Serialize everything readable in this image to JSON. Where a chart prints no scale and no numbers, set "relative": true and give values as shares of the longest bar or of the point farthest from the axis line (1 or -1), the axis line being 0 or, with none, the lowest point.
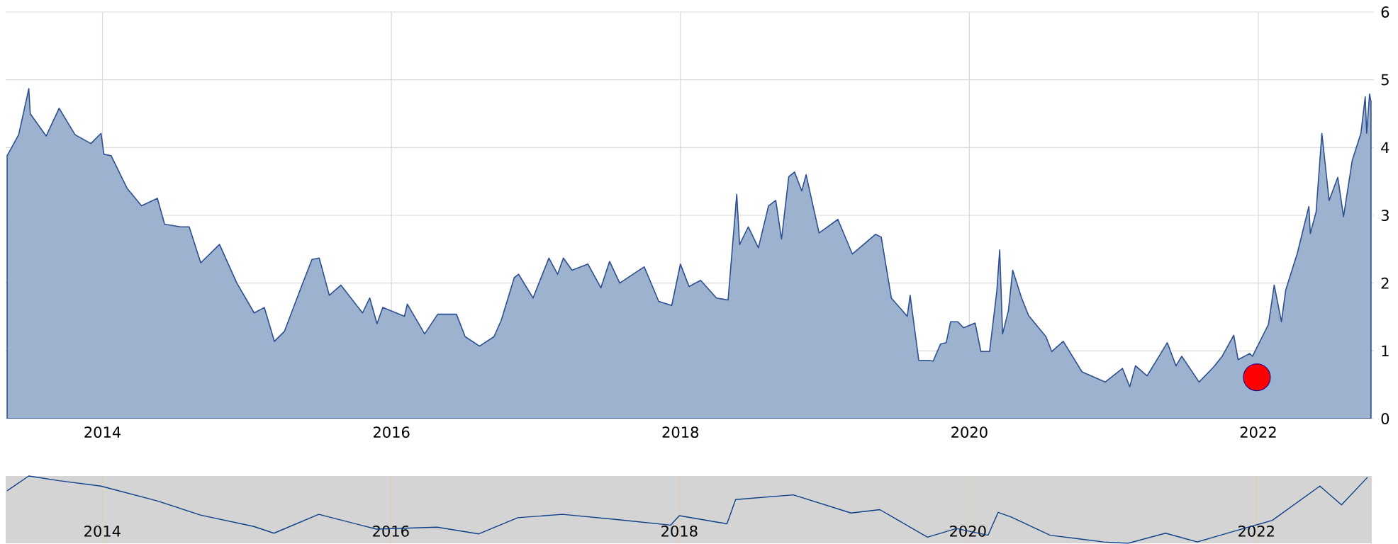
{
  "chart_data": [
    {
      "type": "area",
      "xlim": [
        2013.33,
        2022.8
      ],
      "ylim": [
        0,
        6
      ],
      "xticks": [
        2014,
        2016,
        2018,
        2020,
        2022
      ],
      "yticks": [
        0,
        1,
        2,
        3,
        4,
        5,
        6
      ],
      "grid": true,
      "series": [
        {
          "color": "#9db2cf",
          "x": [
            2013.34,
            2013.42,
            2013.49,
            2013.5,
            2013.61,
            2013.7,
            2013.81,
            2013.92,
            2013.99,
            2014.01,
            2014.06,
            2014.17,
            2014.27,
            2014.38,
            2014.43,
            2014.54,
            2014.6,
            2014.68,
            2014.81,
            2014.93,
            2015.05,
            2015.12,
            2015.19,
            2015.26,
            2015.37,
            2015.45,
            2015.5,
            2015.57,
            2015.65,
            2015.8,
            2015.85,
            2015.9,
            2015.94,
            2016.09,
            2016.11,
            2016.23,
            2016.32,
            2016.45,
            2016.51,
            2016.61,
            2016.71,
            2016.76,
            2016.85,
            2016.88,
            2016.98,
            2017.09,
            2017.15,
            2017.19,
            2017.25,
            2017.36,
            2017.45,
            2017.51,
            2017.58,
            2017.75,
            2017.85,
            2017.94,
            2018.0,
            2018.06,
            2018.14,
            2018.25,
            2018.33,
            2018.39,
            2018.41,
            2018.47,
            2018.54,
            2018.61,
            2018.66,
            2018.7,
            2018.75,
            2018.79,
            2018.84,
            2018.87,
            2018.96,
            2019.09,
            2019.19,
            2019.35,
            2019.39,
            2019.46,
            2019.57,
            2019.59,
            2019.65,
            2019.72,
            2019.75,
            2019.8,
            2019.84,
            2019.87,
            2019.92,
            2019.96,
            2020.04,
            2020.08,
            2020.14,
            2020.19,
            2020.21,
            2020.23,
            2020.27,
            2020.3,
            2020.33,
            2020.36,
            2020.41,
            2020.53,
            2020.57,
            2020.65,
            2020.78,
            2020.94,
            2021.06,
            2021.11,
            2021.15,
            2021.23,
            2021.37,
            2021.43,
            2021.47,
            2021.59,
            2021.69,
            2021.75,
            2021.83,
            2021.86,
            2021.94,
            2021.96,
            2022.07,
            2022.11,
            2022.16,
            2022.19,
            2022.27,
            2022.35,
            2022.36,
            2022.4,
            2022.44,
            2022.49,
            2022.55,
            2022.59,
            2022.65,
            2022.71,
            2022.74,
            2022.75,
            2022.77,
            2022.78
          ],
          "values": [
            3.88,
            4.19,
            4.87,
            4.5,
            4.17,
            4.58,
            4.19,
            4.06,
            4.21,
            3.9,
            3.88,
            3.4,
            3.14,
            3.25,
            2.87,
            2.83,
            2.83,
            2.3,
            2.57,
            2.0,
            1.56,
            1.64,
            1.14,
            1.29,
            1.91,
            2.35,
            2.37,
            1.82,
            1.97,
            1.56,
            1.78,
            1.4,
            1.64,
            1.51,
            1.69,
            1.25,
            1.54,
            1.54,
            1.21,
            1.07,
            1.21,
            1.45,
            2.08,
            2.13,
            1.78,
            2.37,
            2.13,
            2.37,
            2.19,
            2.28,
            1.93,
            2.32,
            2.0,
            2.24,
            1.73,
            1.67,
            2.28,
            1.95,
            2.04,
            1.78,
            1.75,
            3.31,
            2.57,
            2.83,
            2.52,
            3.14,
            3.22,
            2.65,
            3.57,
            3.64,
            3.36,
            3.6,
            2.74,
            2.94,
            2.43,
            2.72,
            2.68,
            1.78,
            1.51,
            1.82,
            0.86,
            0.86,
            0.85,
            1.1,
            1.12,
            1.43,
            1.43,
            1.34,
            1.41,
            0.99,
            0.99,
            1.88,
            2.49,
            1.25,
            1.59,
            2.19,
            1.99,
            1.79,
            1.52,
            1.21,
            0.99,
            1.14,
            0.69,
            0.54,
            0.74,
            0.47,
            0.78,
            0.63,
            1.12,
            0.78,
            0.92,
            0.54,
            0.76,
            0.92,
            1.23,
            0.87,
            0.96,
            0.92,
            1.39,
            1.97,
            1.43,
            1.9,
            2.44,
            3.13,
            2.73,
            3.05,
            4.21,
            3.22,
            3.56,
            2.98,
            3.81,
            4.21,
            4.75,
            4.21,
            4.79,
            4.68
          ]
        },
        {
          "type": "scatter",
          "color": "#ff0000",
          "marker": "circle",
          "x": [
            2021.99
          ],
          "values": [
            0.61
          ]
        }
      ]
    },
    {
      "type": "line",
      "relative": true,
      "xlim": [
        2013.33,
        2022.8
      ],
      "xticks": [
        2014,
        2016,
        2018,
        2020,
        2022
      ],
      "grid": "x",
      "tick_labels": "x",
      "series": [
        {
          "color": "#0b3f87",
          "x": [
            2013.34,
            2013.49,
            2013.7,
            2013.99,
            2014.38,
            2014.68,
            2015.05,
            2015.19,
            2015.5,
            2015.9,
            2016.32,
            2016.61,
            2016.88,
            2017.19,
            2017.58,
            2017.94,
            2018.0,
            2018.33,
            2018.39,
            2018.79,
            2019.19,
            2019.39,
            2019.72,
            2019.92,
            2020.14,
            2020.21,
            2020.3,
            2020.57,
            2020.94,
            2021.11,
            2021.37,
            2021.59,
            2021.83,
            2022.11,
            2022.44,
            2022.59,
            2022.77
          ],
          "values": [
            0.78,
            1.0,
            0.93,
            0.85,
            0.63,
            0.42,
            0.25,
            0.15,
            0.43,
            0.21,
            0.24,
            0.14,
            0.38,
            0.43,
            0.35,
            0.27,
            0.41,
            0.29,
            0.65,
            0.72,
            0.45,
            0.5,
            0.09,
            0.22,
            0.12,
            0.46,
            0.39,
            0.12,
            0.02,
            0.0,
            0.15,
            0.02,
            0.17,
            0.34,
            0.85,
            0.57,
            0.98
          ]
        }
      ]
    }
  ]
}
